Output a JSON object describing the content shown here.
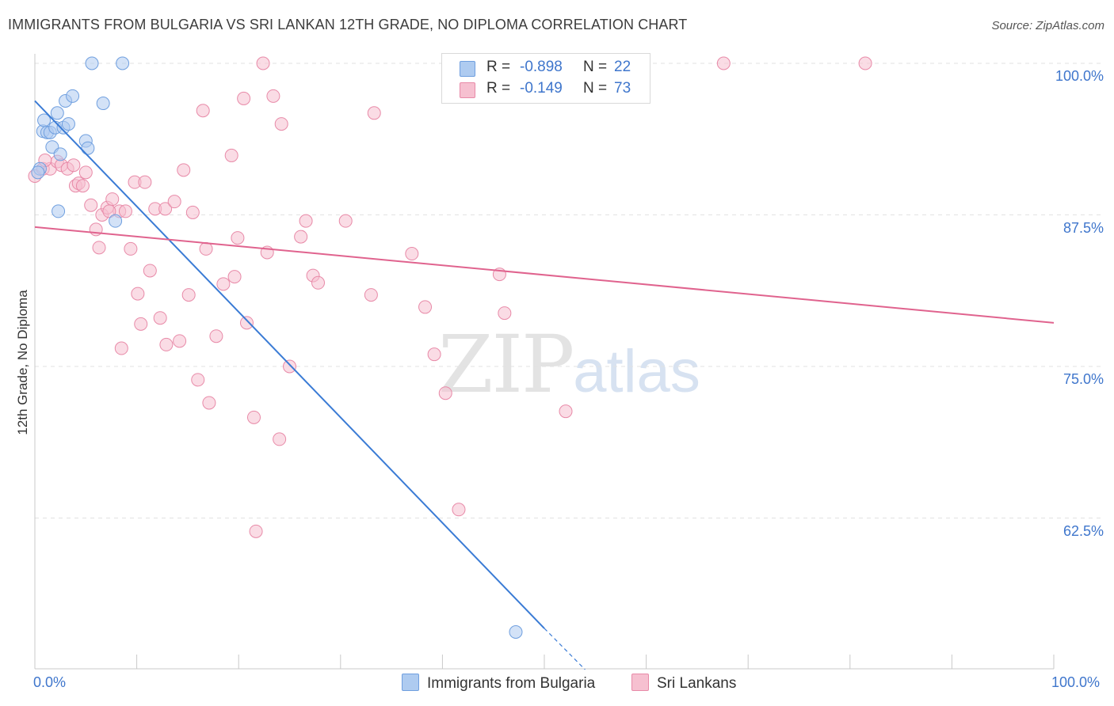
{
  "title": "IMMIGRANTS FROM BULGARIA VS SRI LANKAN 12TH GRADE, NO DIPLOMA CORRELATION CHART",
  "source": "Source: ZipAtlas.com",
  "watermark": {
    "zip": "ZIP",
    "atlas": "atlas"
  },
  "legend": {
    "rows": [
      {
        "r_label": "R =",
        "r_value": "-0.898",
        "n_label": "N =",
        "n_value": "22"
      },
      {
        "r_label": "R =",
        "r_value": "-0.149",
        "n_label": "N =",
        "n_value": "73"
      }
    ]
  },
  "colors": {
    "blue_fill": "#aecbf0",
    "blue_stroke": "#6f9fdf",
    "blue_line": "#3a7bd5",
    "pink_fill": "#f6c0d0",
    "pink_stroke": "#e88aa8",
    "pink_line": "#e0638e",
    "tick_text": "#3f76cc",
    "grid": "#e2e2e2"
  },
  "chart_data": {
    "type": "scatter",
    "title": "IMMIGRANTS FROM BULGARIA VS SRI LANKAN 12TH GRADE, NO DIPLOMA CORRELATION CHART",
    "xlabel": "",
    "ylabel": "12th Grade, No Diploma",
    "xlim": [
      0,
      100
    ],
    "ylim": [
      49.6,
      101.2
    ],
    "x_tick_labels": [
      "0.0%",
      "100.0%"
    ],
    "y_ticks": [
      62.5,
      75.0,
      87.5,
      100.0
    ],
    "y_tick_labels": [
      "62.5%",
      "75.0%",
      "87.5%",
      "100.0%"
    ],
    "grid": true,
    "legend_position": "top-center",
    "series": [
      {
        "name": "Immigrants from Bulgaria",
        "color": "#aecbf0",
        "points": [
          [
            0.5,
            91.3
          ],
          [
            0.8,
            94.4
          ],
          [
            0.9,
            95.3
          ],
          [
            1.2,
            94.3
          ],
          [
            1.5,
            94.3
          ],
          [
            1.7,
            93.1
          ],
          [
            2.0,
            94.7
          ],
          [
            2.2,
            95.9
          ],
          [
            2.3,
            87.8
          ],
          [
            2.5,
            92.5
          ],
          [
            2.8,
            94.7
          ],
          [
            3.0,
            96.9
          ],
          [
            3.3,
            95.0
          ],
          [
            3.7,
            97.3
          ],
          [
            5.0,
            93.6
          ],
          [
            5.2,
            93.0
          ],
          [
            5.6,
            100.0
          ],
          [
            6.7,
            96.7
          ],
          [
            7.9,
            87.0
          ],
          [
            8.6,
            100.0
          ],
          [
            47.2,
            53.1
          ],
          [
            0.3,
            91.0
          ]
        ],
        "trend": {
          "x": [
            0,
            50
          ],
          "y": [
            96.9,
            53.4
          ]
        },
        "trend_dashed": {
          "x": [
            50,
            54
          ],
          "y": [
            53.4,
            50.0
          ]
        }
      },
      {
        "name": "Sri Lankans",
        "color": "#f6c0d0",
        "points": [
          [
            0.0,
            90.7
          ],
          [
            0.8,
            91.3
          ],
          [
            1.5,
            91.3
          ],
          [
            2.2,
            91.9
          ],
          [
            2.6,
            91.6
          ],
          [
            3.2,
            91.3
          ],
          [
            4.0,
            89.9
          ],
          [
            4.3,
            90.1
          ],
          [
            4.7,
            89.9
          ],
          [
            5.0,
            91.0
          ],
          [
            5.5,
            88.3
          ],
          [
            6.0,
            86.3
          ],
          [
            6.3,
            84.8
          ],
          [
            6.6,
            87.5
          ],
          [
            7.1,
            88.1
          ],
          [
            7.6,
            88.8
          ],
          [
            8.3,
            87.8
          ],
          [
            8.5,
            76.5
          ],
          [
            8.9,
            87.8
          ],
          [
            9.4,
            84.7
          ],
          [
            9.8,
            90.2
          ],
          [
            10.1,
            81.0
          ],
          [
            10.4,
            78.5
          ],
          [
            10.8,
            90.2
          ],
          [
            11.3,
            82.9
          ],
          [
            11.8,
            88.0
          ],
          [
            12.3,
            79.0
          ],
          [
            12.8,
            88.0
          ],
          [
            12.9,
            76.8
          ],
          [
            13.7,
            88.6
          ],
          [
            14.2,
            77.1
          ],
          [
            14.6,
            91.2
          ],
          [
            15.1,
            80.9
          ],
          [
            15.5,
            87.7
          ],
          [
            16.0,
            73.9
          ],
          [
            16.5,
            96.1
          ],
          [
            16.8,
            84.7
          ],
          [
            17.1,
            72.0
          ],
          [
            17.8,
            77.5
          ],
          [
            18.5,
            81.8
          ],
          [
            19.3,
            92.4
          ],
          [
            19.6,
            82.4
          ],
          [
            19.9,
            85.6
          ],
          [
            20.5,
            97.1
          ],
          [
            20.8,
            78.6
          ],
          [
            21.5,
            70.8
          ],
          [
            21.7,
            61.4
          ],
          [
            22.4,
            100.0
          ],
          [
            22.8,
            84.4
          ],
          [
            23.4,
            97.3
          ],
          [
            24.0,
            69.0
          ],
          [
            24.2,
            95.0
          ],
          [
            25.0,
            75.0
          ],
          [
            26.1,
            85.7
          ],
          [
            26.6,
            87.0
          ],
          [
            27.3,
            82.5
          ],
          [
            27.8,
            81.9
          ],
          [
            30.5,
            87.0
          ],
          [
            33.0,
            80.9
          ],
          [
            33.3,
            95.9
          ],
          [
            37.0,
            84.3
          ],
          [
            38.3,
            79.9
          ],
          [
            39.2,
            76.0
          ],
          [
            40.3,
            72.8
          ],
          [
            41.6,
            63.2
          ],
          [
            45.6,
            82.6
          ],
          [
            46.1,
            79.4
          ],
          [
            52.1,
            71.3
          ],
          [
            67.6,
            100.0
          ],
          [
            81.5,
            100.0
          ],
          [
            1.0,
            92.0
          ],
          [
            3.8,
            91.6
          ],
          [
            7.3,
            87.8
          ]
        ],
        "trend": {
          "x": [
            0,
            100
          ],
          "y": [
            86.5,
            78.6
          ]
        }
      }
    ]
  }
}
